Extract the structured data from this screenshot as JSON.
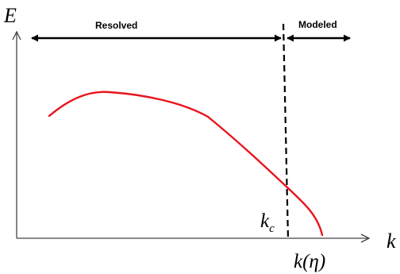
{
  "axes": {
    "y_label": "E",
    "x_label": "k"
  },
  "regions": {
    "resolved_label": "Resolved",
    "modeled_label": "Modeled"
  },
  "cutoff": {
    "label_base": "k",
    "label_subscript": "c"
  },
  "dissipation": {
    "label": "k(η)"
  },
  "colors": {
    "curve": "#e8141c",
    "axes": "#444444",
    "ink": "#000000"
  },
  "icons": {
    "y_axis_arrow": "arrow-up-icon",
    "x_axis_arrow": "arrow-right-icon"
  }
}
